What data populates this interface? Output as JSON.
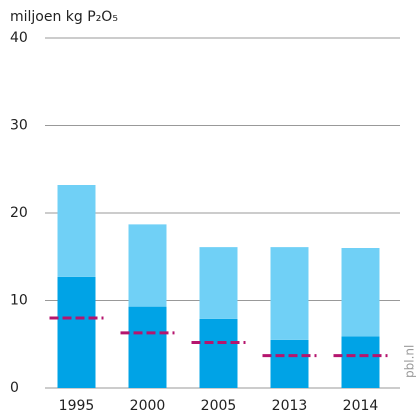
{
  "chart_data": {
    "type": "bar",
    "stacked": true,
    "y_axis_label": "miljoen kg P₂O₅",
    "source": "pbl.nl",
    "categories": [
      "1995",
      "2000",
      "2005",
      "2013",
      "2014"
    ],
    "series": [
      {
        "color": "#00a3e6",
        "values": [
          12.7,
          9.3,
          7.9,
          5.5,
          5.9
        ]
      },
      {
        "color": "#70d0f6",
        "values": [
          10.5,
          9.4,
          8.2,
          10.6,
          10.1
        ]
      },
      {
        "color": "#b5156e",
        "kind": "marker",
        "values": [
          8.0,
          6.3,
          5.2,
          3.7,
          3.7
        ]
      }
    ],
    "ylim": [
      0,
      40
    ],
    "yticks": [
      0,
      10,
      20,
      30,
      40
    ],
    "grid": true
  }
}
